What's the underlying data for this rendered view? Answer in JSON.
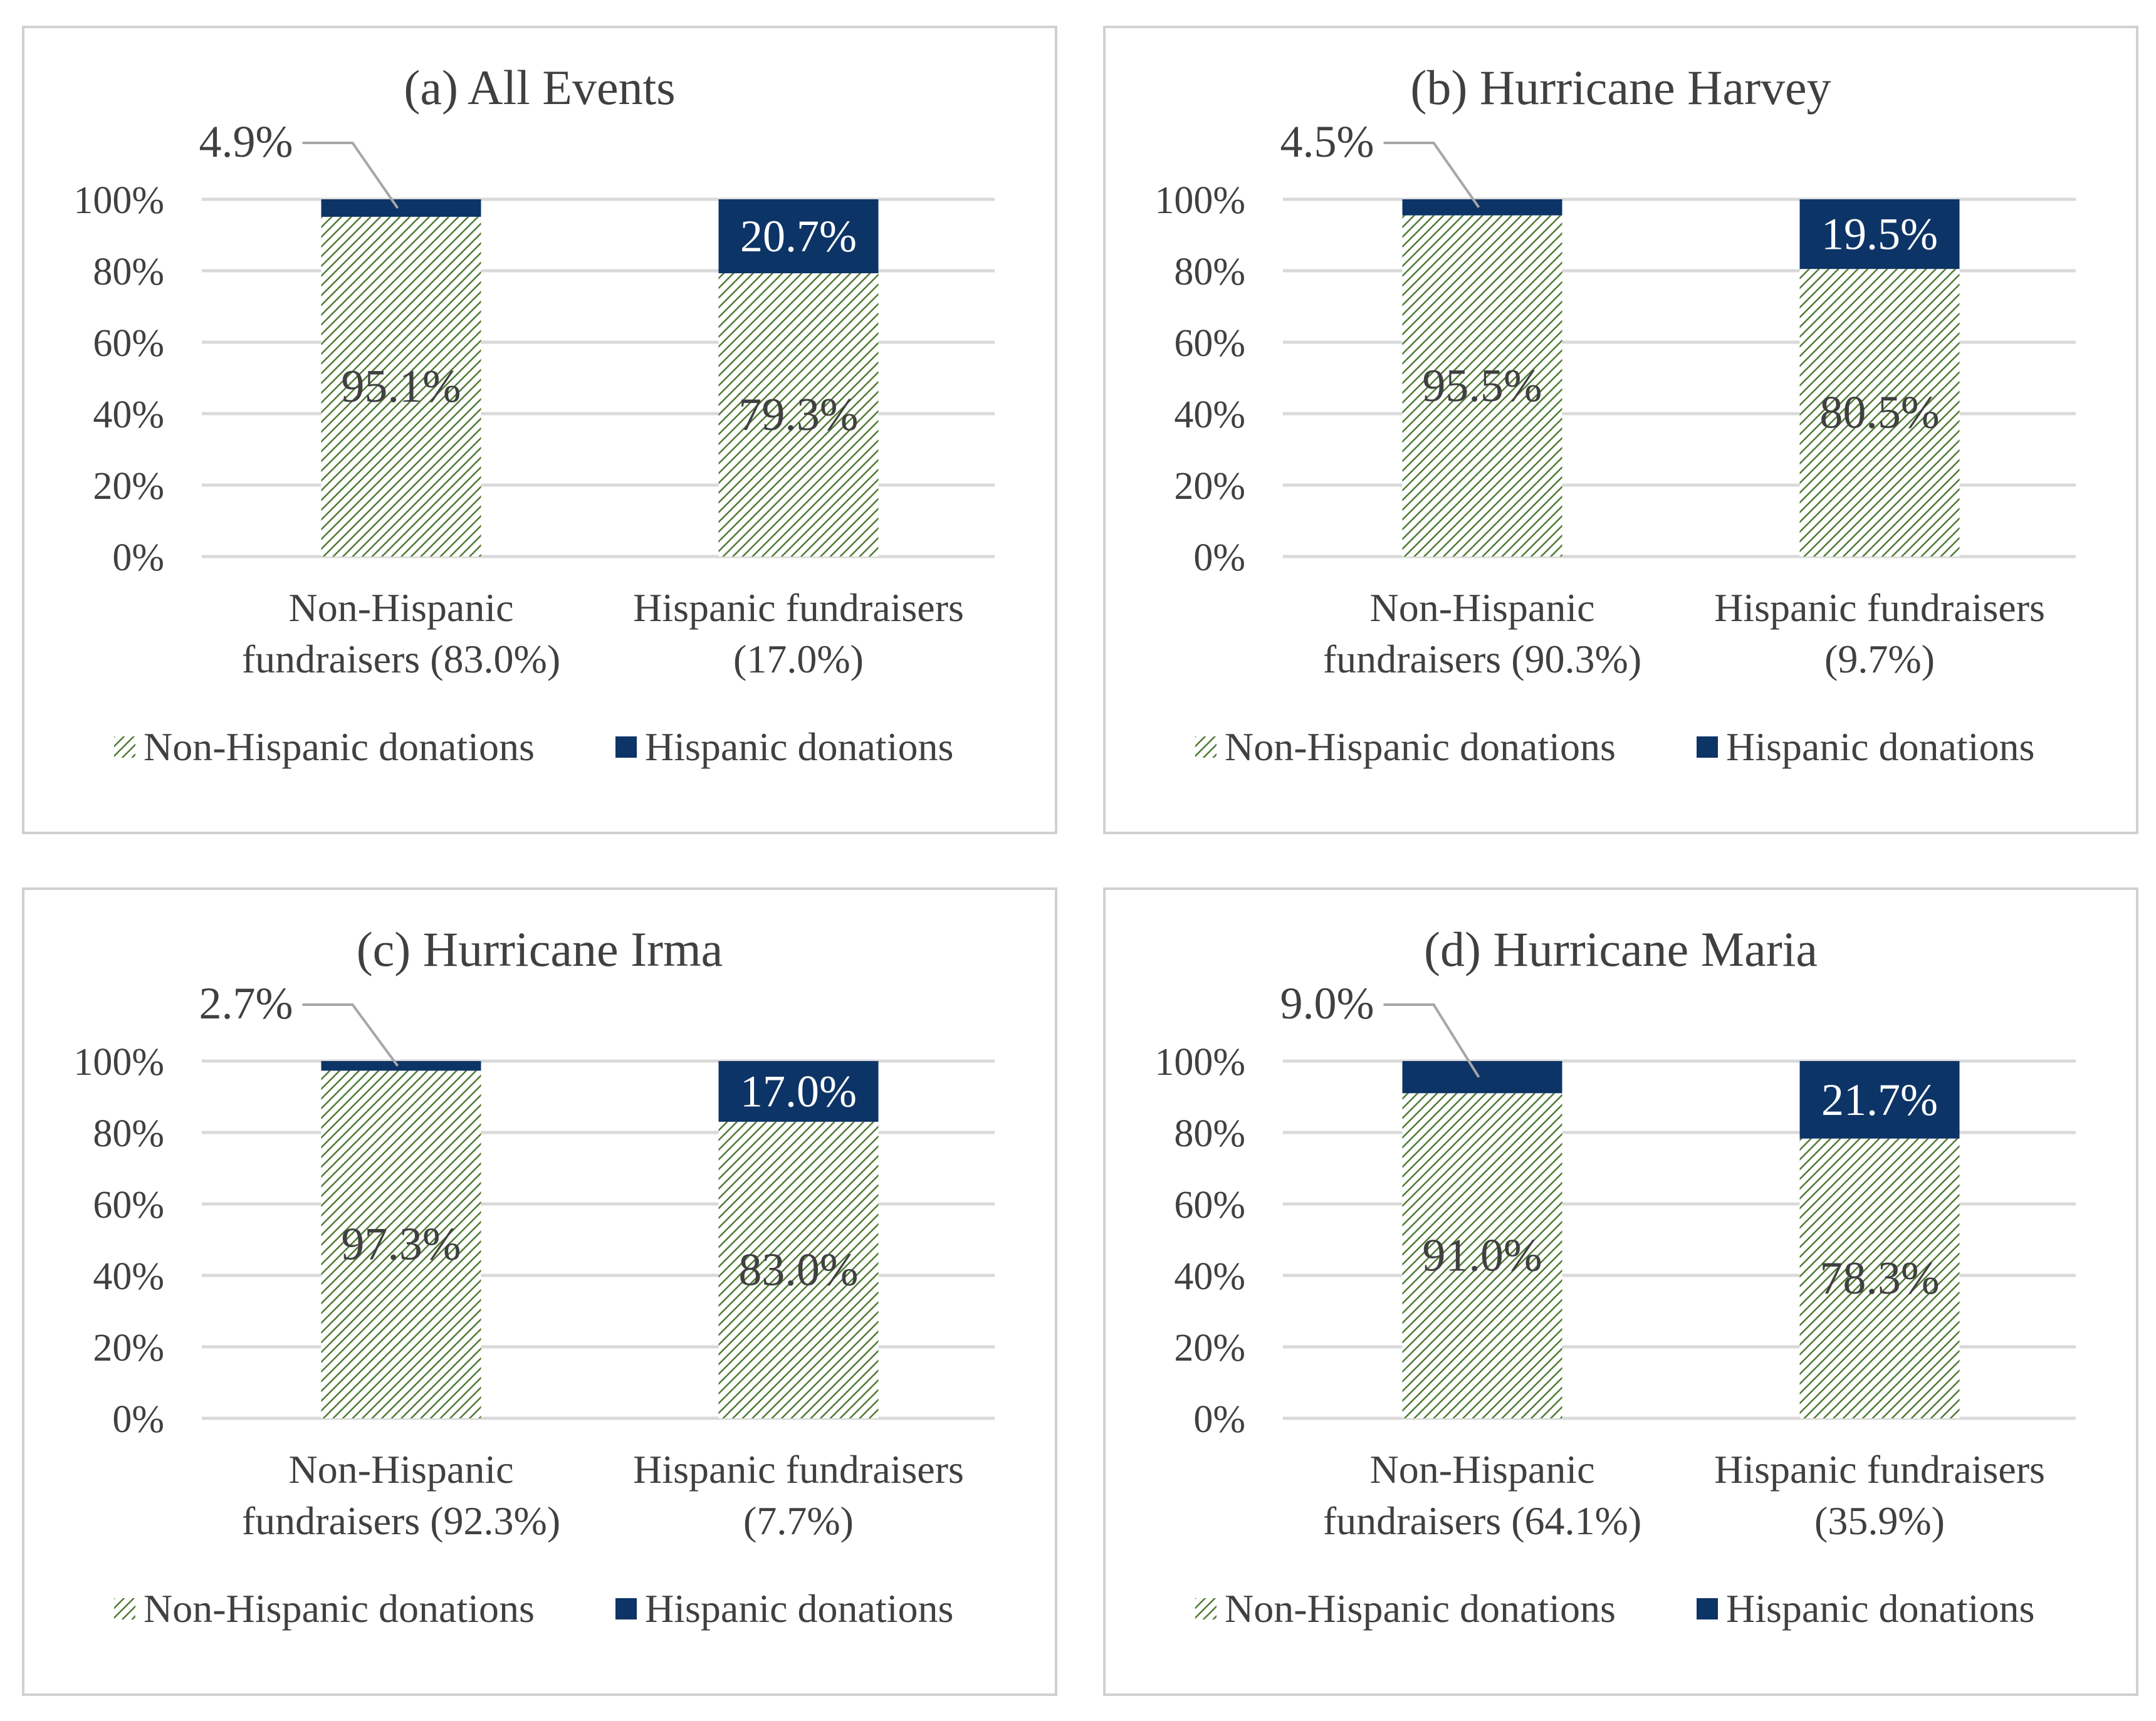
{
  "colors": {
    "non_hispanic_hatch": "#4e7a32",
    "hispanic_fill": "#0d3466",
    "grid": "#d9d9d9",
    "panel_border": "#d0d0d0",
    "text": "#404040",
    "value_label_light": "#ffffff",
    "leader_line": "#a6a6a6"
  },
  "chart_data": [
    {
      "type": "bar",
      "stacked": true,
      "title": "(a) All Events",
      "categories": [
        "Non-Hispanic fundraisers (83.0%)",
        "Hispanic fundraisers (17.0%)"
      ],
      "category_lines": [
        [
          "Non-Hispanic",
          "fundraisers (83.0%)"
        ],
        [
          "Hispanic fundraisers",
          "(17.0%)"
        ]
      ],
      "series": [
        {
          "name": "Non-Hispanic donations",
          "values": [
            95.1,
            79.3
          ],
          "labels": [
            "95.1%",
            "79.3%"
          ]
        },
        {
          "name": "Hispanic donations",
          "values": [
            4.9,
            20.7
          ],
          "labels": [
            "4.9%",
            "20.7%"
          ]
        }
      ],
      "y_ticks": [
        "0%",
        "20%",
        "40%",
        "60%",
        "80%",
        "100%"
      ],
      "ylim": [
        0,
        100
      ],
      "legend": [
        "Non-Hispanic donations",
        "Hispanic donations"
      ],
      "legend_position": "bottom"
    },
    {
      "type": "bar",
      "stacked": true,
      "title": "(b) Hurricane Harvey",
      "categories": [
        "Non-Hispanic fundraisers (90.3%)",
        "Hispanic fundraisers (9.7%)"
      ],
      "category_lines": [
        [
          "Non-Hispanic",
          "fundraisers (90.3%)"
        ],
        [
          "Hispanic fundraisers",
          "(9.7%)"
        ]
      ],
      "series": [
        {
          "name": "Non-Hispanic donations",
          "values": [
            95.5,
            80.5
          ],
          "labels": [
            "95.5%",
            "80.5%"
          ]
        },
        {
          "name": "Hispanic donations",
          "values": [
            4.5,
            19.5
          ],
          "labels": [
            "4.5%",
            "19.5%"
          ]
        }
      ],
      "y_ticks": [
        "0%",
        "20%",
        "40%",
        "60%",
        "80%",
        "100%"
      ],
      "ylim": [
        0,
        100
      ],
      "legend": [
        "Non-Hispanic donations",
        "Hispanic donations"
      ],
      "legend_position": "bottom"
    },
    {
      "type": "bar",
      "stacked": true,
      "title": "(c) Hurricane Irma",
      "categories": [
        "Non-Hispanic fundraisers (92.3%)",
        "Hispanic fundraisers (7.7%)"
      ],
      "category_lines": [
        [
          "Non-Hispanic",
          "fundraisers (92.3%)"
        ],
        [
          "Hispanic fundraisers",
          "(7.7%)"
        ]
      ],
      "series": [
        {
          "name": "Non-Hispanic donations",
          "values": [
            97.3,
            83.0
          ],
          "labels": [
            "97.3%",
            "83.0%"
          ]
        },
        {
          "name": "Hispanic donations",
          "values": [
            2.7,
            17.0
          ],
          "labels": [
            "2.7%",
            "17.0%"
          ]
        }
      ],
      "y_ticks": [
        "0%",
        "20%",
        "40%",
        "60%",
        "80%",
        "100%"
      ],
      "ylim": [
        0,
        100
      ],
      "legend": [
        "Non-Hispanic donations",
        "Hispanic donations"
      ],
      "legend_position": "bottom"
    },
    {
      "type": "bar",
      "stacked": true,
      "title": "(d) Hurricane Maria",
      "categories": [
        "Non-Hispanic fundraisers (64.1%)",
        "Hispanic fundraisers (35.9%)"
      ],
      "category_lines": [
        [
          "Non-Hispanic",
          "fundraisers (64.1%)"
        ],
        [
          "Hispanic fundraisers",
          "(35.9%)"
        ]
      ],
      "series": [
        {
          "name": "Non-Hispanic donations",
          "values": [
            91.0,
            78.3
          ],
          "labels": [
            "91.0%",
            "78.3%"
          ]
        },
        {
          "name": "Hispanic donations",
          "values": [
            9.0,
            21.7
          ],
          "labels": [
            "9.0%",
            "21.7%"
          ]
        }
      ],
      "y_ticks": [
        "0%",
        "20%",
        "40%",
        "60%",
        "80%",
        "100%"
      ],
      "ylim": [
        0,
        100
      ],
      "legend": [
        "Non-Hispanic donations",
        "Hispanic donations"
      ],
      "legend_position": "bottom"
    }
  ]
}
